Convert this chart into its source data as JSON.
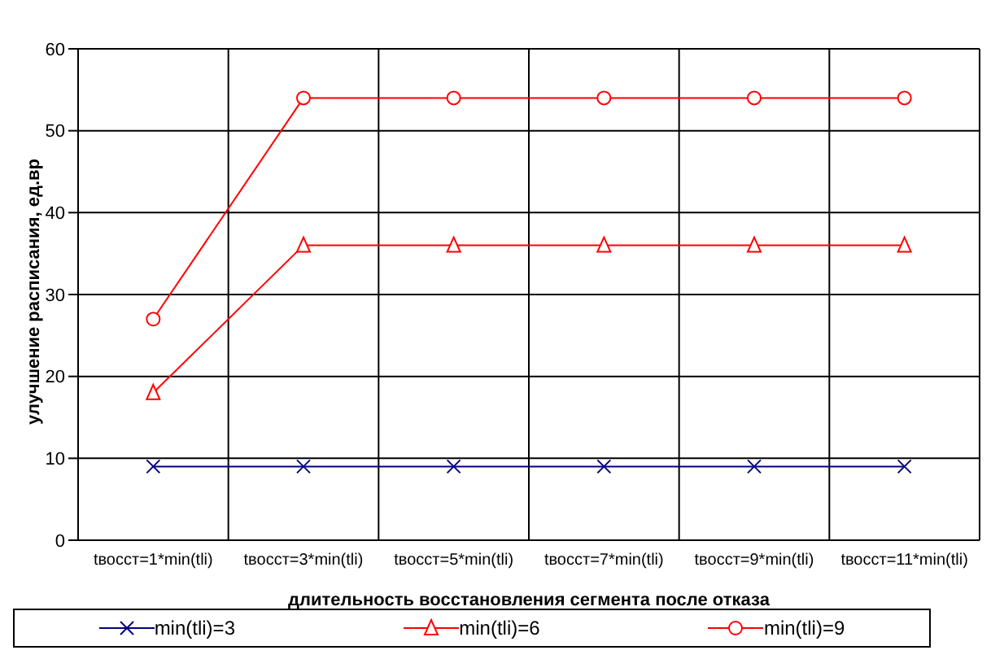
{
  "chart_data": {
    "type": "line",
    "ylabel": "улучшение расписания, ед.вр",
    "xlabel": "длительность восстановления сегмента после отказа",
    "categories": [
      "tвосст=1*min(tli)",
      "tвосст=3*min(tli)",
      "tвосст=5*min(tli)",
      "tвосст=7*min(tli)",
      "tвосст=9*min(tli)",
      "tвосст=11*min(tli)"
    ],
    "series": [
      {
        "name": "min(tli)=3",
        "color": "#000080",
        "marker": "cross",
        "values": [
          9,
          9,
          9,
          9,
          9,
          9
        ]
      },
      {
        "name": "min(tli)=6",
        "color": "#ff0000",
        "marker": "triangle",
        "values": [
          18,
          36,
          36,
          36,
          36,
          36
        ]
      },
      {
        "name": "min(tli)=9",
        "color": "#ff0000",
        "marker": "circle",
        "values": [
          27,
          54,
          54,
          54,
          54,
          54
        ]
      }
    ],
    "ylim": [
      0,
      60
    ],
    "yticks": [
      0,
      10,
      20,
      30,
      40,
      50,
      60
    ],
    "grid": true,
    "legend": "bottom"
  }
}
